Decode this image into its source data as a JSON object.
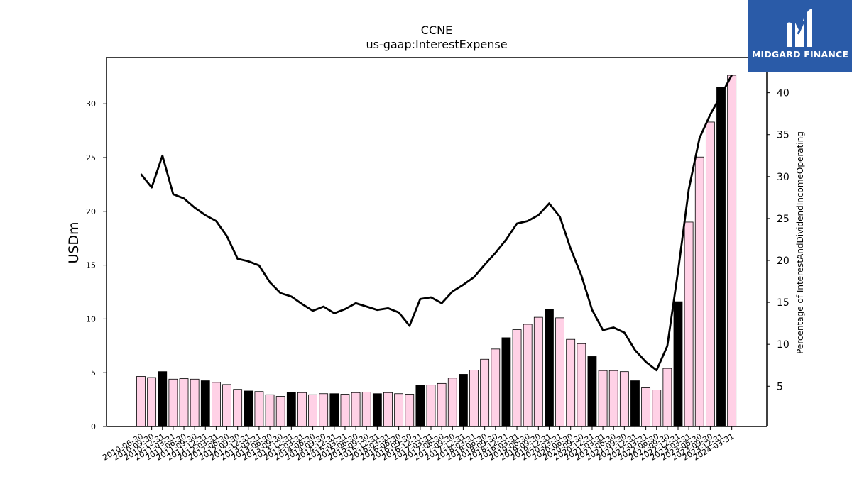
{
  "logo": {
    "text": "MIDGARD FINANCE",
    "icon": "mf-logo-icon",
    "bg": "#2a5ba8"
  },
  "chart_data": {
    "type": "bar+line",
    "title": "CCNE",
    "subtitle": "us-gaap:InterestExpense",
    "ylabel": "USDm",
    "y2label": "Percentage of InterestAndDividendIncomeOperating",
    "ylim": [
      0,
      34.3
    ],
    "y2lim": [
      0.2,
      44.2
    ],
    "yticks": [
      0,
      5,
      10,
      15,
      20,
      25,
      30
    ],
    "y2ticks": [
      5,
      10,
      15,
      20,
      25,
      30,
      35,
      40
    ],
    "bar_color": "#ffd1e6",
    "bar_highlight_color": "#000000",
    "line_color": "#000000",
    "categories": [
      "2010-06-30",
      "2010-09-30",
      "2010-12-31",
      "2011-03-31",
      "2011-06-30",
      "2011-09-30",
      "2011-12-31",
      "2012-03-31",
      "2012-06-30",
      "2012-09-30",
      "2012-12-31",
      "2013-03-31",
      "2013-06-30",
      "2013-09-30",
      "2013-12-31",
      "2014-03-31",
      "2014-06-30",
      "2014-09-30",
      "2014-12-31",
      "2015-03-31",
      "2015-06-30",
      "2015-09-30",
      "2015-12-31",
      "2016-03-31",
      "2016-06-30",
      "2016-09-30",
      "2016-12-31",
      "2017-03-31",
      "2017-06-30",
      "2017-09-30",
      "2017-12-31",
      "2018-03-31",
      "2018-06-30",
      "2018-09-30",
      "2018-12-31",
      "2019-03-31",
      "2019-06-30",
      "2019-09-30",
      "2019-12-31",
      "2020-03-31",
      "2020-06-30",
      "2020-09-30",
      "2020-12-31",
      "2021-03-31",
      "2021-06-30",
      "2021-09-30",
      "2021-12-31",
      "2022-03-31",
      "2022-06-30",
      "2022-09-30",
      "2022-12-31",
      "2023-03-31",
      "2023-06-30",
      "2023-09-30",
      "2023-12-31",
      "2024-03-31"
    ],
    "xtick_labels": [
      "2010-06-30",
      "2010-09-30",
      "2010-12-31",
      "2011-03-31",
      "2011-06-30",
      "2011-09-30",
      "2011-12-31",
      "2012-03-31",
      "2012-06-30",
      "2012-09-30",
      "2012-12-31",
      "2013-03-31",
      "2013-06-30",
      "2013-09-30",
      "2013-12-31",
      "2014-03-31",
      "2014-06-30",
      "2014-09-30",
      "2014-12-31",
      "2015-03-31",
      "2015-06-30",
      "2015-09-30",
      "2015-12-31",
      "2016-03-31",
      "2016-06-30",
      "2016-09-30",
      "2016-12-31",
      "2017-03-31",
      "2017-06-30",
      "2017-09-30",
      "2017-12-31",
      "2018-03-31",
      "2018-06-30",
      "2018-09-30",
      "2018-12-31",
      "2019-03-31",
      "2019-06-30",
      "2019-09-30",
      "2019-12-31",
      "2020-03-31",
      "2020-06-30",
      "2020-09-30",
      "2020-12-31",
      "2021-03-31",
      "2021-06-30",
      "2021-09-30",
      "2021-12-31",
      "2022-03-31",
      "2022-06-30",
      "2022-09-30",
      "2022-12-31",
      "2023-03-31",
      "2023-06-30",
      "2023-09-30",
      "2023-12-31",
      "2024-03-31"
    ],
    "series": [
      {
        "type": "bar",
        "axis": "left",
        "values": [
          4.65,
          4.55,
          5.1,
          4.4,
          4.45,
          4.4,
          4.25,
          4.1,
          3.9,
          3.45,
          3.3,
          3.25,
          2.95,
          2.8,
          3.2,
          3.15,
          2.95,
          3.05,
          3.05,
          3.0,
          3.15,
          3.2,
          3.05,
          3.15,
          3.05,
          3.0,
          3.8,
          3.85,
          4.0,
          4.5,
          4.85,
          5.25,
          6.25,
          7.2,
          8.25,
          9.0,
          9.5,
          10.15,
          10.9,
          10.1,
          8.1,
          7.7,
          6.5,
          5.2,
          5.2,
          5.1,
          4.25,
          3.6,
          3.4,
          5.4,
          11.6,
          19.0,
          25.05,
          28.3,
          31.55,
          32.65
        ],
        "highlight": [
          false,
          false,
          true,
          false,
          false,
          false,
          true,
          false,
          false,
          false,
          true,
          false,
          false,
          false,
          true,
          false,
          false,
          false,
          true,
          false,
          false,
          false,
          true,
          false,
          false,
          false,
          true,
          false,
          false,
          false,
          true,
          false,
          false,
          false,
          true,
          false,
          false,
          false,
          true,
          false,
          false,
          false,
          true,
          false,
          false,
          false,
          true,
          false,
          false,
          false,
          true,
          false,
          false,
          false,
          true,
          false
        ]
      },
      {
        "type": "line",
        "axis": "right",
        "values": [
          30.3,
          28.7,
          32.5,
          27.9,
          27.4,
          26.3,
          25.4,
          24.7,
          22.9,
          20.2,
          19.9,
          19.4,
          17.4,
          16.1,
          15.7,
          14.8,
          14.0,
          14.5,
          13.7,
          14.2,
          14.9,
          14.5,
          14.1,
          14.3,
          13.8,
          12.2,
          15.4,
          15.6,
          14.9,
          16.3,
          17.1,
          18.0,
          19.5,
          20.9,
          22.5,
          24.4,
          24.7,
          25.4,
          26.8,
          25.2,
          21.4,
          18.2,
          14.1,
          11.7,
          12.0,
          11.4,
          9.3,
          7.9,
          6.9,
          9.8,
          18.7,
          28.5,
          34.6,
          37.4,
          39.7,
          42.1
        ]
      }
    ]
  }
}
